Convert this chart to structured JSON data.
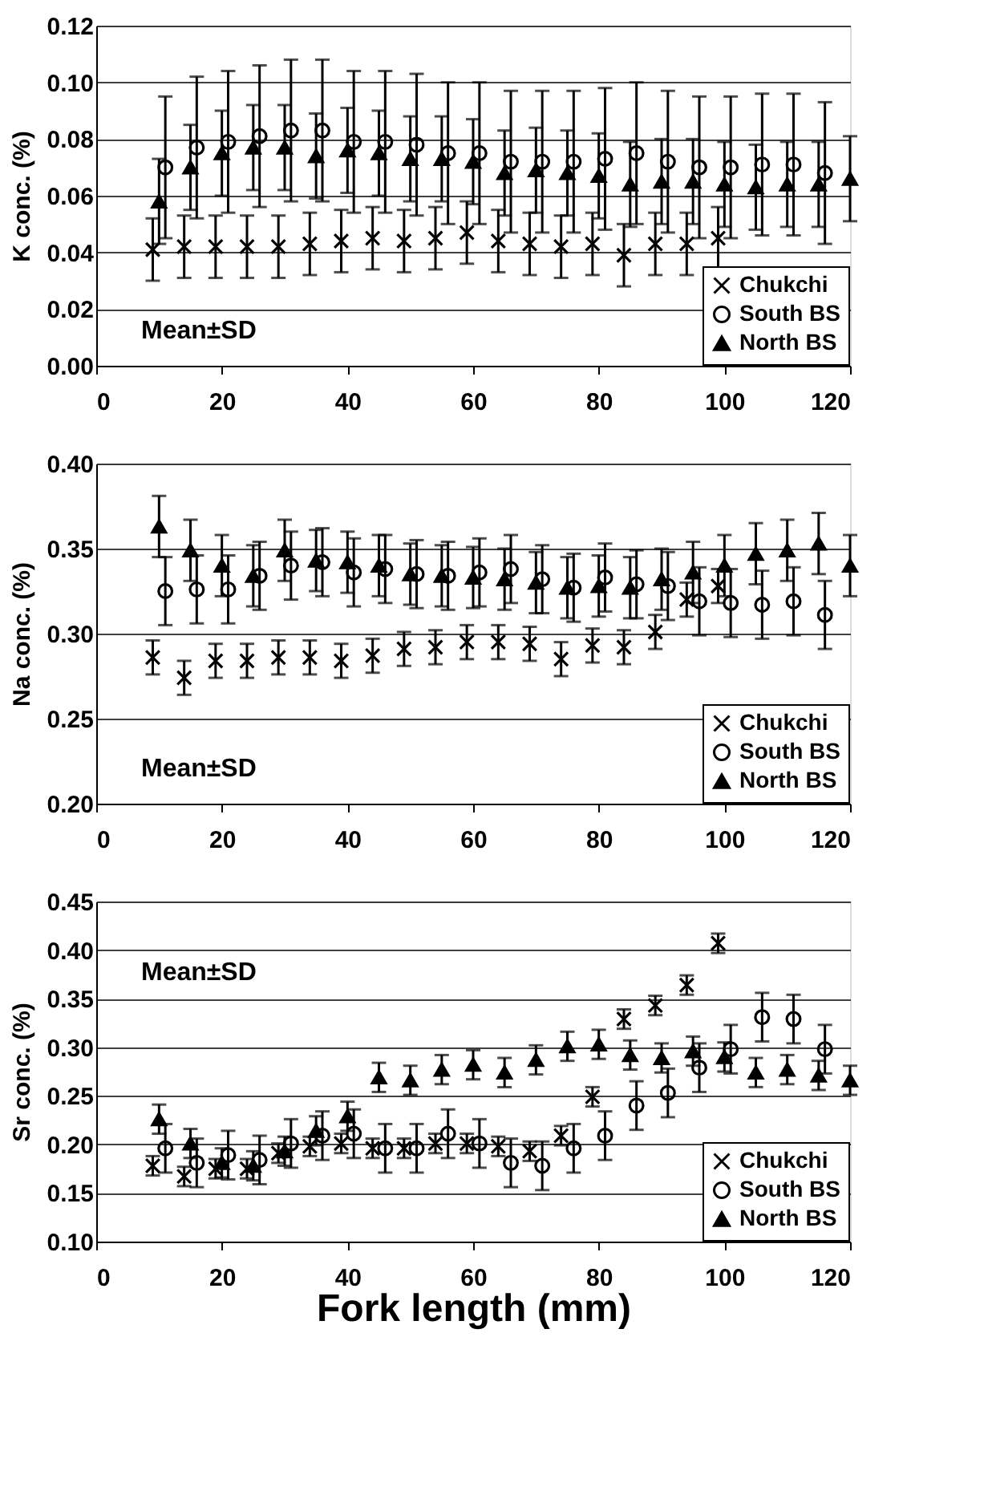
{
  "chart_data": [
    {
      "type": "scatter",
      "ylabel": "K conc. (%)",
      "xlim": [
        0,
        120
      ],
      "xticks": [
        0,
        20,
        40,
        60,
        80,
        100,
        120
      ],
      "ylim": [
        0,
        0.12
      ],
      "yticks": [
        {
          "value": 0,
          "label": "0.00"
        },
        {
          "value": 0.02,
          "label": "0.02"
        },
        {
          "value": 0.04,
          "label": "0.04"
        },
        {
          "value": 0.06,
          "label": "0.06"
        },
        {
          "value": 0.08,
          "label": "0.08"
        },
        {
          "value": 0.1,
          "label": "0.10"
        },
        {
          "value": 0.12,
          "label": "0.12"
        }
      ],
      "grid": "y",
      "legend": "bottom right",
      "annotations": [
        "Mean±SD"
      ],
      "series": [
        {
          "name": "Chukchi",
          "color": "#000000",
          "marker": "cross",
          "x": [
            9,
            14,
            19,
            24,
            29,
            34,
            39,
            44,
            49,
            54,
            59,
            64,
            69,
            74,
            79,
            84,
            89,
            94,
            99
          ],
          "values": [
            0.041,
            0.042,
            0.042,
            0.042,
            0.042,
            0.043,
            0.044,
            0.045,
            0.044,
            0.045,
            0.047,
            0.044,
            0.043,
            0.042,
            0.043,
            0.039,
            0.043,
            0.043,
            0.045
          ],
          "errors": [
            0.011,
            0.011,
            0.011,
            0.011,
            0.011,
            0.011,
            0.011,
            0.011,
            0.011,
            0.011,
            0.011,
            0.011,
            0.011,
            0.011,
            0.011,
            0.011,
            0.011,
            0.011,
            0.011
          ]
        },
        {
          "name": "South BS",
          "color": "#000000",
          "marker": "circle",
          "x": [
            11,
            16,
            21,
            26,
            31,
            36,
            41,
            46,
            51,
            56,
            61,
            66,
            71,
            76,
            81,
            86,
            91,
            96,
            101,
            106,
            111,
            116
          ],
          "values": [
            0.07,
            0.077,
            0.079,
            0.081,
            0.083,
            0.083,
            0.079,
            0.079,
            0.078,
            0.075,
            0.075,
            0.072,
            0.072,
            0.072,
            0.073,
            0.075,
            0.072,
            0.07,
            0.07,
            0.071,
            0.071,
            0.068
          ],
          "errors": [
            0.025,
            0.025,
            0.025,
            0.025,
            0.025,
            0.025,
            0.025,
            0.025,
            0.025,
            0.025,
            0.025,
            0.025,
            0.025,
            0.025,
            0.025,
            0.025,
            0.025,
            0.025,
            0.025,
            0.025,
            0.025,
            0.025
          ]
        },
        {
          "name": "North BS",
          "color": "#000000",
          "marker": "triangle",
          "x": [
            10,
            15,
            20,
            25,
            30,
            35,
            40,
            45,
            50,
            55,
            60,
            65,
            70,
            75,
            80,
            85,
            90,
            95,
            100,
            105,
            110,
            115,
            120
          ],
          "values": [
            0.058,
            0.07,
            0.075,
            0.077,
            0.077,
            0.074,
            0.076,
            0.075,
            0.073,
            0.073,
            0.072,
            0.068,
            0.069,
            0.068,
            0.067,
            0.064,
            0.065,
            0.065,
            0.064,
            0.063,
            0.064,
            0.064,
            0.066
          ],
          "errors": [
            0.015,
            0.015,
            0.015,
            0.015,
            0.015,
            0.015,
            0.015,
            0.015,
            0.015,
            0.015,
            0.015,
            0.015,
            0.015,
            0.015,
            0.015,
            0.015,
            0.015,
            0.015,
            0.015,
            0.015,
            0.015,
            0.015,
            0.015
          ]
        }
      ]
    },
    {
      "type": "scatter",
      "ylabel": "Na conc. (%)",
      "xlim": [
        0,
        120
      ],
      "xticks": [
        0,
        20,
        40,
        60,
        80,
        100,
        120
      ],
      "ylim": [
        0.2,
        0.4
      ],
      "yticks": [
        {
          "value": 0.2,
          "label": "0.20"
        },
        {
          "value": 0.25,
          "label": "0.25"
        },
        {
          "value": 0.3,
          "label": "0.30"
        },
        {
          "value": 0.35,
          "label": "0.35"
        },
        {
          "value": 0.4,
          "label": "0.40"
        }
      ],
      "grid": "y",
      "legend": "bottom right",
      "annotations": [
        "Mean±SD"
      ],
      "series": [
        {
          "name": "Chukchi",
          "color": "#000000",
          "marker": "cross",
          "x": [
            9,
            14,
            19,
            24,
            29,
            34,
            39,
            44,
            49,
            54,
            59,
            64,
            69,
            74,
            79,
            84,
            89,
            94,
            99
          ],
          "values": [
            0.286,
            0.274,
            0.284,
            0.284,
            0.286,
            0.286,
            0.284,
            0.287,
            0.291,
            0.292,
            0.295,
            0.295,
            0.294,
            0.285,
            0.293,
            0.292,
            0.301,
            0.32,
            0.328
          ],
          "errors": [
            0.01,
            0.01,
            0.01,
            0.01,
            0.01,
            0.01,
            0.01,
            0.01,
            0.01,
            0.01,
            0.01,
            0.01,
            0.01,
            0.01,
            0.01,
            0.01,
            0.01,
            0.01,
            0.01
          ]
        },
        {
          "name": "South BS",
          "color": "#000000",
          "marker": "circle",
          "x": [
            11,
            16,
            21,
            26,
            31,
            36,
            41,
            46,
            51,
            56,
            61,
            66,
            71,
            76,
            81,
            86,
            91,
            96,
            101,
            106,
            111,
            116
          ],
          "values": [
            0.325,
            0.326,
            0.326,
            0.334,
            0.34,
            0.342,
            0.336,
            0.338,
            0.335,
            0.334,
            0.336,
            0.338,
            0.332,
            0.327,
            0.333,
            0.329,
            0.328,
            0.319,
            0.318,
            0.317,
            0.319,
            0.311
          ],
          "errors": [
            0.02,
            0.02,
            0.02,
            0.02,
            0.02,
            0.02,
            0.02,
            0.02,
            0.02,
            0.02,
            0.02,
            0.02,
            0.02,
            0.02,
            0.02,
            0.02,
            0.02,
            0.02,
            0.02,
            0.02,
            0.02,
            0.02
          ]
        },
        {
          "name": "North BS",
          "color": "#000000",
          "marker": "triangle",
          "x": [
            10,
            15,
            20,
            25,
            30,
            35,
            40,
            45,
            50,
            55,
            60,
            65,
            70,
            75,
            80,
            85,
            90,
            95,
            100,
            105,
            110,
            115,
            120
          ],
          "values": [
            0.363,
            0.349,
            0.34,
            0.334,
            0.349,
            0.343,
            0.342,
            0.34,
            0.335,
            0.334,
            0.333,
            0.332,
            0.33,
            0.327,
            0.328,
            0.327,
            0.332,
            0.336,
            0.34,
            0.347,
            0.349,
            0.353,
            0.34
          ],
          "errors": [
            0.018,
            0.018,
            0.018,
            0.018,
            0.018,
            0.018,
            0.018,
            0.018,
            0.018,
            0.018,
            0.018,
            0.018,
            0.018,
            0.018,
            0.018,
            0.018,
            0.018,
            0.018,
            0.018,
            0.018,
            0.018,
            0.018,
            0.018
          ]
        }
      ]
    },
    {
      "type": "scatter",
      "ylabel": "Sr conc. (%)",
      "xlabel": "Fork length (mm)",
      "xlim": [
        0,
        120
      ],
      "xticks": [
        0,
        20,
        40,
        60,
        80,
        100,
        120
      ],
      "ylim": [
        0.1,
        0.45
      ],
      "yticks": [
        {
          "value": 0.1,
          "label": "0.10"
        },
        {
          "value": 0.15,
          "label": "0.15"
        },
        {
          "value": 0.2,
          "label": "0.20"
        },
        {
          "value": 0.25,
          "label": "0.25"
        },
        {
          "value": 0.3,
          "label": "0.30"
        },
        {
          "value": 0.35,
          "label": "0.35"
        },
        {
          "value": 0.4,
          "label": "0.40"
        },
        {
          "value": 0.45,
          "label": "0.45"
        }
      ],
      "grid": "y",
      "legend": "bottom right",
      "annotations": [
        "Mean±SD"
      ],
      "series": [
        {
          "name": "Chukchi",
          "color": "#000000",
          "marker": "cross",
          "x": [
            9,
            14,
            19,
            24,
            29,
            34,
            39,
            44,
            49,
            54,
            59,
            64,
            69,
            74,
            79,
            84,
            89,
            94,
            99
          ],
          "values": [
            0.178,
            0.167,
            0.175,
            0.175,
            0.191,
            0.198,
            0.201,
            0.196,
            0.196,
            0.201,
            0.201,
            0.198,
            0.193,
            0.209,
            0.249,
            0.329,
            0.343,
            0.364,
            0.407
          ],
          "errors": [
            0.01,
            0.01,
            0.01,
            0.01,
            0.01,
            0.01,
            0.01,
            0.01,
            0.01,
            0.01,
            0.01,
            0.01,
            0.01,
            0.01,
            0.01,
            0.01,
            0.01,
            0.01,
            0.01
          ]
        },
        {
          "name": "South BS",
          "color": "#000000",
          "marker": "circle",
          "x": [
            11,
            16,
            21,
            26,
            31,
            36,
            41,
            46,
            51,
            56,
            61,
            66,
            71,
            76,
            81,
            86,
            91,
            96,
            101,
            106,
            111,
            116
          ],
          "values": [
            0.196,
            0.181,
            0.189,
            0.184,
            0.201,
            0.209,
            0.211,
            0.196,
            0.196,
            0.211,
            0.201,
            0.181,
            0.178,
            0.196,
            0.209,
            0.24,
            0.253,
            0.279,
            0.298,
            0.331,
            0.329,
            0.298
          ],
          "errors": [
            0.025,
            0.025,
            0.025,
            0.025,
            0.025,
            0.025,
            0.025,
            0.025,
            0.025,
            0.025,
            0.025,
            0.025,
            0.025,
            0.025,
            0.025,
            0.025,
            0.025,
            0.025,
            0.025,
            0.025,
            0.025,
            0.025
          ]
        },
        {
          "name": "North BS",
          "color": "#000000",
          "marker": "triangle",
          "x": [
            10,
            15,
            20,
            25,
            30,
            35,
            40,
            45,
            50,
            55,
            60,
            65,
            70,
            75,
            80,
            85,
            90,
            95,
            100,
            105,
            110,
            115,
            120
          ],
          "values": [
            0.226,
            0.201,
            0.181,
            0.178,
            0.193,
            0.214,
            0.229,
            0.269,
            0.266,
            0.277,
            0.282,
            0.274,
            0.287,
            0.301,
            0.303,
            0.292,
            0.289,
            0.296,
            0.29,
            0.274,
            0.277,
            0.271,
            0.266
          ],
          "errors": [
            0.015,
            0.015,
            0.015,
            0.015,
            0.015,
            0.015,
            0.015,
            0.015,
            0.015,
            0.015,
            0.015,
            0.015,
            0.015,
            0.015,
            0.015,
            0.015,
            0.015,
            0.015,
            0.015,
            0.015,
            0.015,
            0.015,
            0.015
          ]
        }
      ]
    }
  ]
}
